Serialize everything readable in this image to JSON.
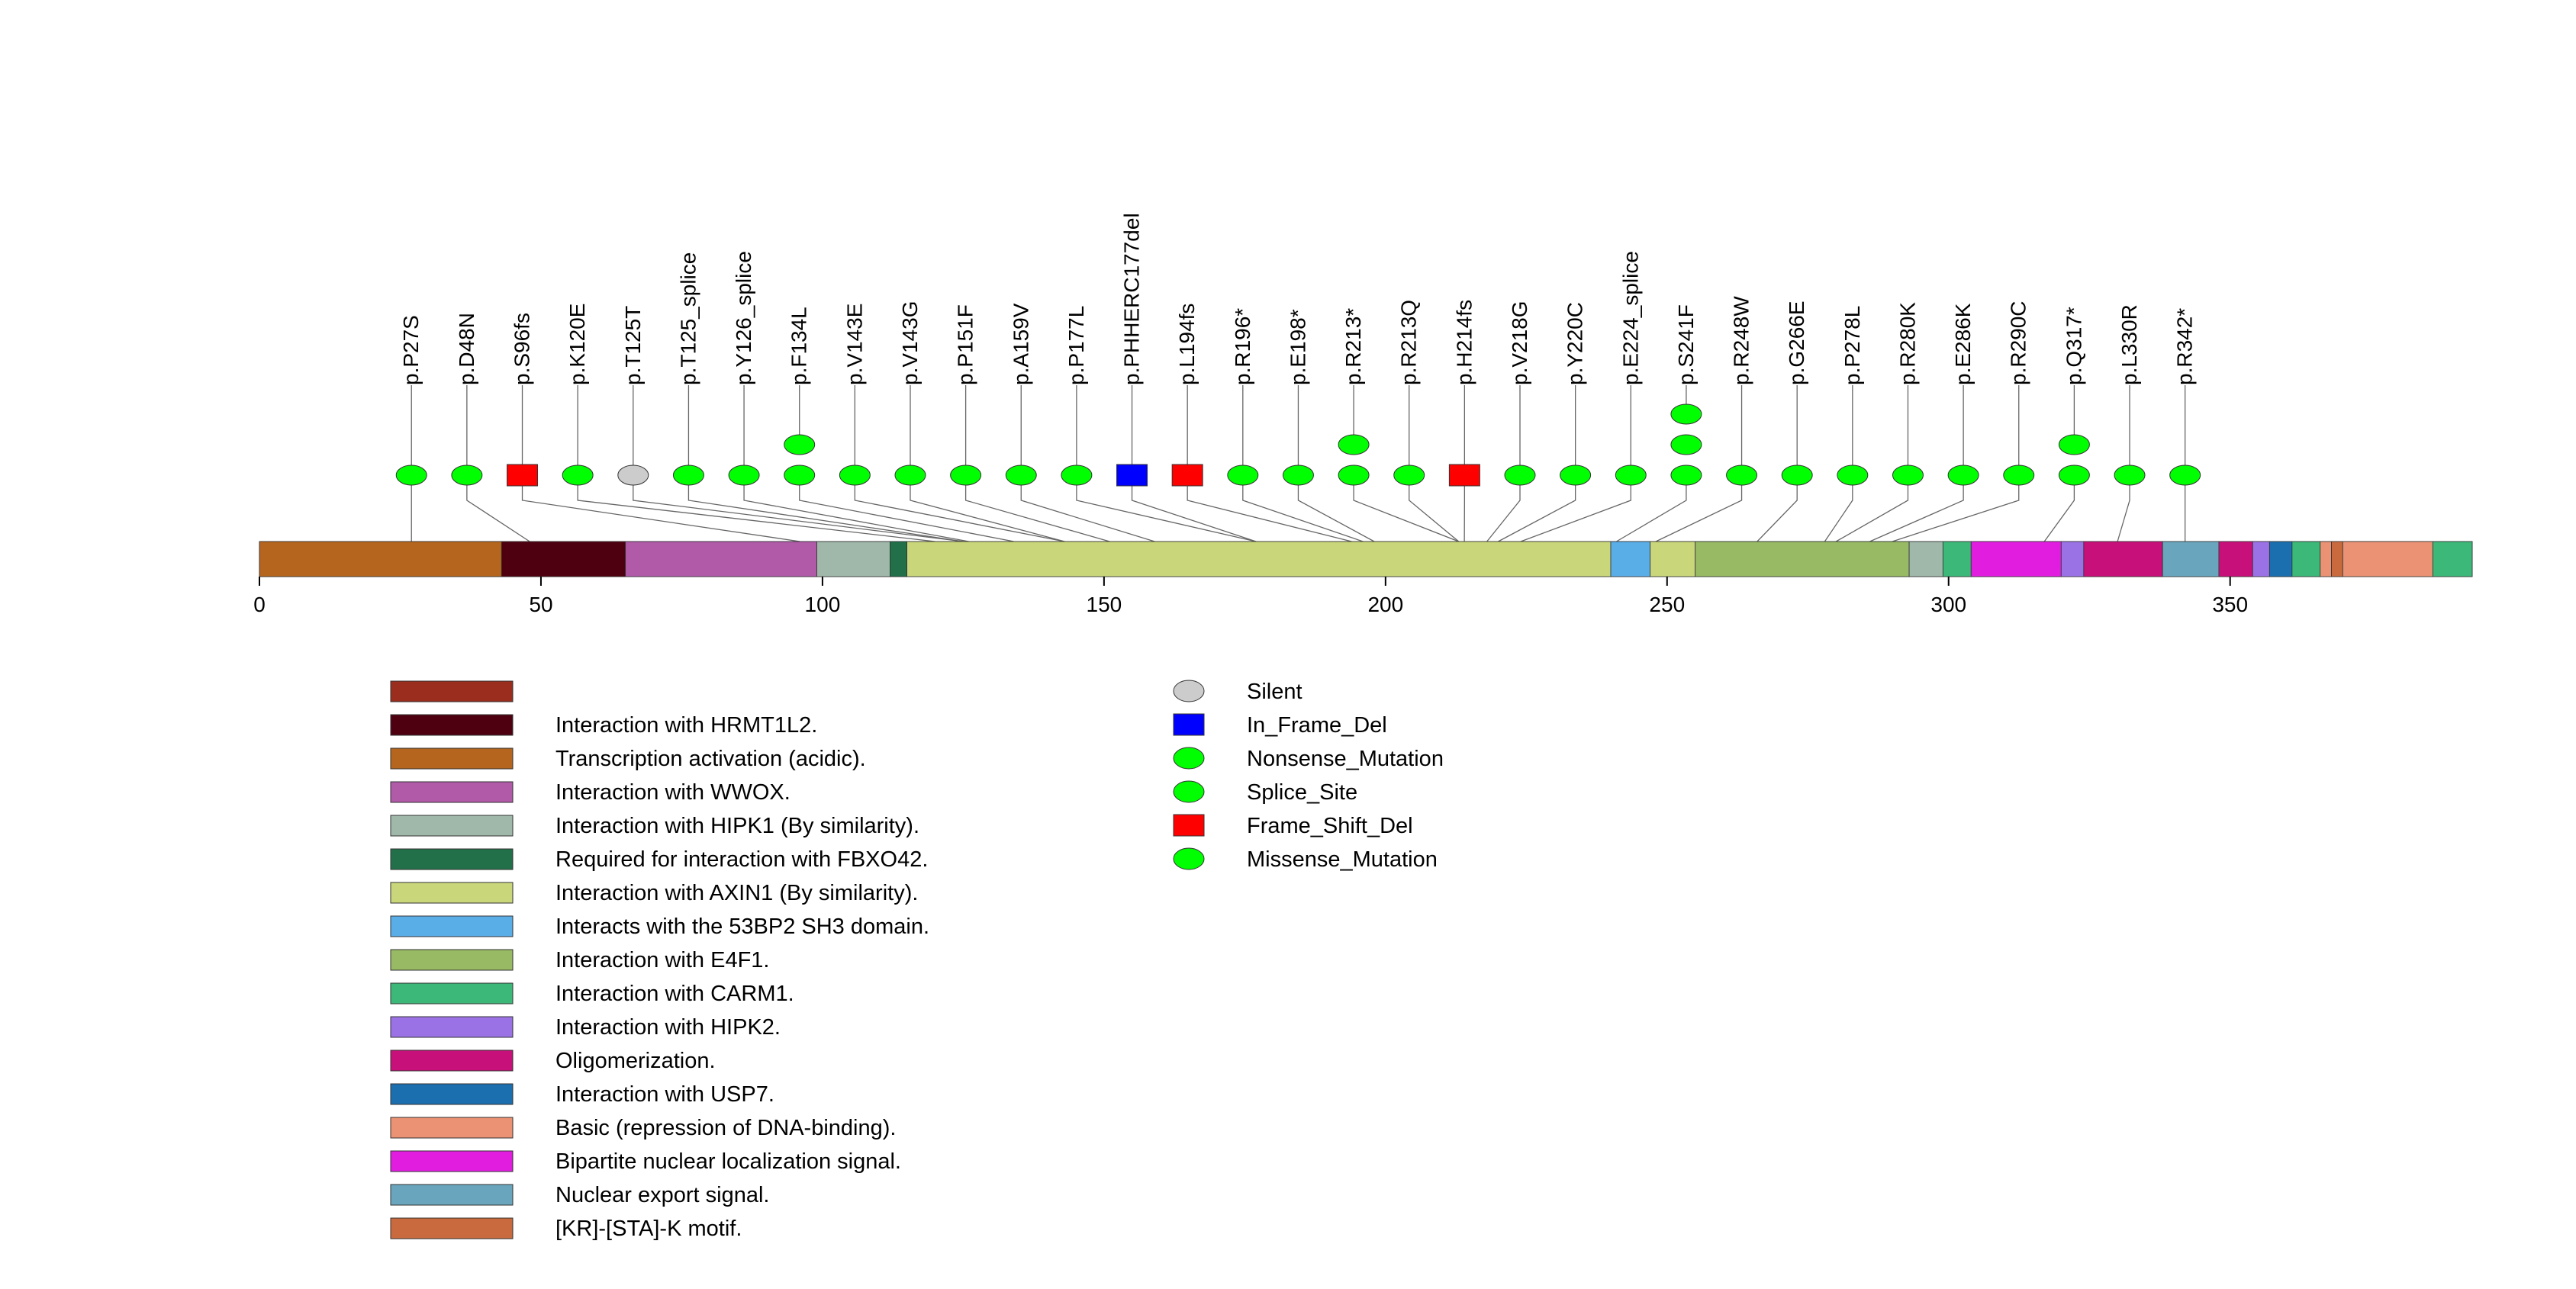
{
  "chart_data": {
    "type": "lollipop",
    "protein_length": 393,
    "axis": {
      "ticks": [
        0,
        50,
        100,
        150,
        200,
        250,
        300,
        350
      ],
      "range": [
        0,
        393
      ]
    },
    "domains": [
      {
        "name": "Interaction with HRMT1L2.",
        "start": 43,
        "end": 65
      },
      {
        "name": "Transcription activation (acidic).",
        "start": 0,
        "end": 43
      },
      {
        "name": "Interaction with WWOX.",
        "start": 65,
        "end": 99
      },
      {
        "name": "Interaction with HIPK1 (By similarity).",
        "start": 99,
        "end": 112
      },
      {
        "name": "Required for interaction with FBXO42.",
        "start": 112,
        "end": 115
      },
      {
        "name": "Interaction with AXIN1 (By similarity).",
        "start": 115,
        "end": 240
      },
      {
        "name": "Interacts with the 53BP2 SH3 domain.",
        "start": 240,
        "end": 247
      },
      {
        "name": "Interaction with AXIN1 (By similarity).",
        "start": 247,
        "end": 255
      },
      {
        "name": "Interaction with E4F1.",
        "start": 255,
        "end": 293
      },
      {
        "name": "Interaction with HIPK1 (By similarity).",
        "start": 293,
        "end": 299
      },
      {
        "name": "Interaction with CARM1.",
        "start": 299,
        "end": 304
      },
      {
        "name": "Bipartite nuclear localization signal.",
        "start": 304,
        "end": 320
      },
      {
        "name": "Interaction with HIPK2.",
        "start": 320,
        "end": 324
      },
      {
        "name": "Oligomerization.",
        "start": 324,
        "end": 338
      },
      {
        "name": "Nuclear export signal.",
        "start": 338,
        "end": 348
      },
      {
        "name": "Oligomerization.",
        "start": 348,
        "end": 354
      },
      {
        "name": "Interaction with HIPK2.",
        "start": 354,
        "end": 357
      },
      {
        "name": "Interaction with USP7.",
        "start": 357,
        "end": 361
      },
      {
        "name": "Interaction with CARM1.",
        "start": 361,
        "end": 366
      },
      {
        "name": "Basic (repression of DNA-binding).",
        "start": 366,
        "end": 368
      },
      {
        "name": "[KR]-[STA]-K motif.",
        "start": 368,
        "end": 370
      },
      {
        "name": "Basic (repression of DNA-binding).",
        "start": 370,
        "end": 386
      },
      {
        "name": "Interaction with CARM1.",
        "start": 386,
        "end": 393
      }
    ],
    "mutations": [
      {
        "label": "p.P27S",
        "pos": 27,
        "count": 1,
        "type": "Missense_Mutation"
      },
      {
        "label": "p.D48N",
        "pos": 48,
        "count": 1,
        "type": "Missense_Mutation"
      },
      {
        "label": "p.S96fs",
        "pos": 96,
        "count": 1,
        "type": "Frame_Shift_Del"
      },
      {
        "label": "p.K120E",
        "pos": 120,
        "count": 1,
        "type": "Missense_Mutation"
      },
      {
        "label": "p.T125T",
        "pos": 125,
        "count": 1,
        "type": "Silent"
      },
      {
        "label": "p.T125_splice",
        "pos": 125,
        "count": 1,
        "type": "Splice_Site"
      },
      {
        "label": "p.Y126_splice",
        "pos": 126,
        "count": 1,
        "type": "Splice_Site"
      },
      {
        "label": "p.F134L",
        "pos": 134,
        "count": 2,
        "type": "Missense_Mutation"
      },
      {
        "label": "p.V143E",
        "pos": 143,
        "count": 1,
        "type": "Missense_Mutation"
      },
      {
        "label": "p.V143G",
        "pos": 143,
        "count": 1,
        "type": "Missense_Mutation"
      },
      {
        "label": "p.P151F",
        "pos": 151,
        "count": 1,
        "type": "Missense_Mutation"
      },
      {
        "label": "p.A159V",
        "pos": 159,
        "count": 1,
        "type": "Missense_Mutation"
      },
      {
        "label": "p.P177L",
        "pos": 177,
        "count": 1,
        "type": "Missense_Mutation"
      },
      {
        "label": "p.PHHERC177del",
        "pos": 177,
        "count": 1,
        "type": "In_Frame_Del"
      },
      {
        "label": "p.L194fs",
        "pos": 194,
        "count": 1,
        "type": "Frame_Shift_Del"
      },
      {
        "label": "p.R196*",
        "pos": 196,
        "count": 1,
        "type": "Nonsense_Mutation"
      },
      {
        "label": "p.E198*",
        "pos": 198,
        "count": 1,
        "type": "Nonsense_Mutation"
      },
      {
        "label": "p.R213*",
        "pos": 213,
        "count": 2,
        "type": "Nonsense_Mutation"
      },
      {
        "label": "p.R213Q",
        "pos": 213,
        "count": 1,
        "type": "Missense_Mutation"
      },
      {
        "label": "p.H214fs",
        "pos": 214,
        "count": 1,
        "type": "Frame_Shift_Del"
      },
      {
        "label": "p.V218G",
        "pos": 218,
        "count": 1,
        "type": "Missense_Mutation"
      },
      {
        "label": "p.Y220C",
        "pos": 220,
        "count": 1,
        "type": "Missense_Mutation"
      },
      {
        "label": "p.E224_splice",
        "pos": 224,
        "count": 1,
        "type": "Splice_Site"
      },
      {
        "label": "p.S241F",
        "pos": 241,
        "count": 3,
        "type": "Missense_Mutation"
      },
      {
        "label": "p.R248W",
        "pos": 248,
        "count": 1,
        "type": "Missense_Mutation"
      },
      {
        "label": "p.G266E",
        "pos": 266,
        "count": 1,
        "type": "Missense_Mutation"
      },
      {
        "label": "p.P278L",
        "pos": 278,
        "count": 1,
        "type": "Missense_Mutation"
      },
      {
        "label": "p.R280K",
        "pos": 280,
        "count": 1,
        "type": "Missense_Mutation"
      },
      {
        "label": "p.E286K",
        "pos": 286,
        "count": 1,
        "type": "Missense_Mutation"
      },
      {
        "label": "p.R290C",
        "pos": 290,
        "count": 1,
        "type": "Missense_Mutation"
      },
      {
        "label": "p.Q317*",
        "pos": 317,
        "count": 2,
        "type": "Nonsense_Mutation"
      },
      {
        "label": "p.L330R",
        "pos": 330,
        "count": 1,
        "type": "Missense_Mutation"
      },
      {
        "label": "p.R342*",
        "pos": 342,
        "count": 1,
        "type": "Nonsense_Mutation"
      }
    ],
    "domain_legend": [
      {
        "label": "",
        "color": "#9b2d1f"
      },
      {
        "label": "Interaction with HRMT1L2.",
        "color": "#4f0010"
      },
      {
        "label": "Transcription activation (acidic).",
        "color": "#b5651d"
      },
      {
        "label": "Interaction with WWOX.",
        "color": "#b05aa8"
      },
      {
        "label": "Interaction with HIPK1 (By similarity).",
        "color": "#9fb8aa"
      },
      {
        "label": "Required for interaction with FBXO42.",
        "color": "#21704a"
      },
      {
        "label": "Interaction with AXIN1 (By similarity).",
        "color": "#c9d67a"
      },
      {
        "label": "Interacts with the 53BP2 SH3 domain.",
        "color": "#5aaee8"
      },
      {
        "label": "Interaction with E4F1.",
        "color": "#98ba64"
      },
      {
        "label": "Interaction with CARM1.",
        "color": "#3cb878"
      },
      {
        "label": "Interaction with HIPK2.",
        "color": "#9b72e6"
      },
      {
        "label": "Oligomerization.",
        "color": "#c8107a"
      },
      {
        "label": "Interaction with USP7.",
        "color": "#1c6fae"
      },
      {
        "label": "Basic (repression of DNA-binding).",
        "color": "#ea9273"
      },
      {
        "label": "Bipartite nuclear localization signal.",
        "color": "#e11ee0"
      },
      {
        "label": "Nuclear export signal.",
        "color": "#69a6bd"
      },
      {
        "label": "[KR]-[STA]-K motif.",
        "color": "#c86a3e"
      }
    ],
    "mutation_legend": [
      {
        "label": "Silent",
        "shape": "ellipse",
        "color": "#cccccc"
      },
      {
        "label": "In_Frame_Del",
        "shape": "rect",
        "color": "#0000ff"
      },
      {
        "label": "Nonsense_Mutation",
        "shape": "ellipse",
        "color": "#00ff00"
      },
      {
        "label": "Splice_Site",
        "shape": "ellipse",
        "color": "#00ff00"
      },
      {
        "label": "Frame_Shift_Del",
        "shape": "rect",
        "color": "#ff0000"
      },
      {
        "label": "Missense_Mutation",
        "shape": "ellipse",
        "color": "#00ff00"
      }
    ]
  }
}
